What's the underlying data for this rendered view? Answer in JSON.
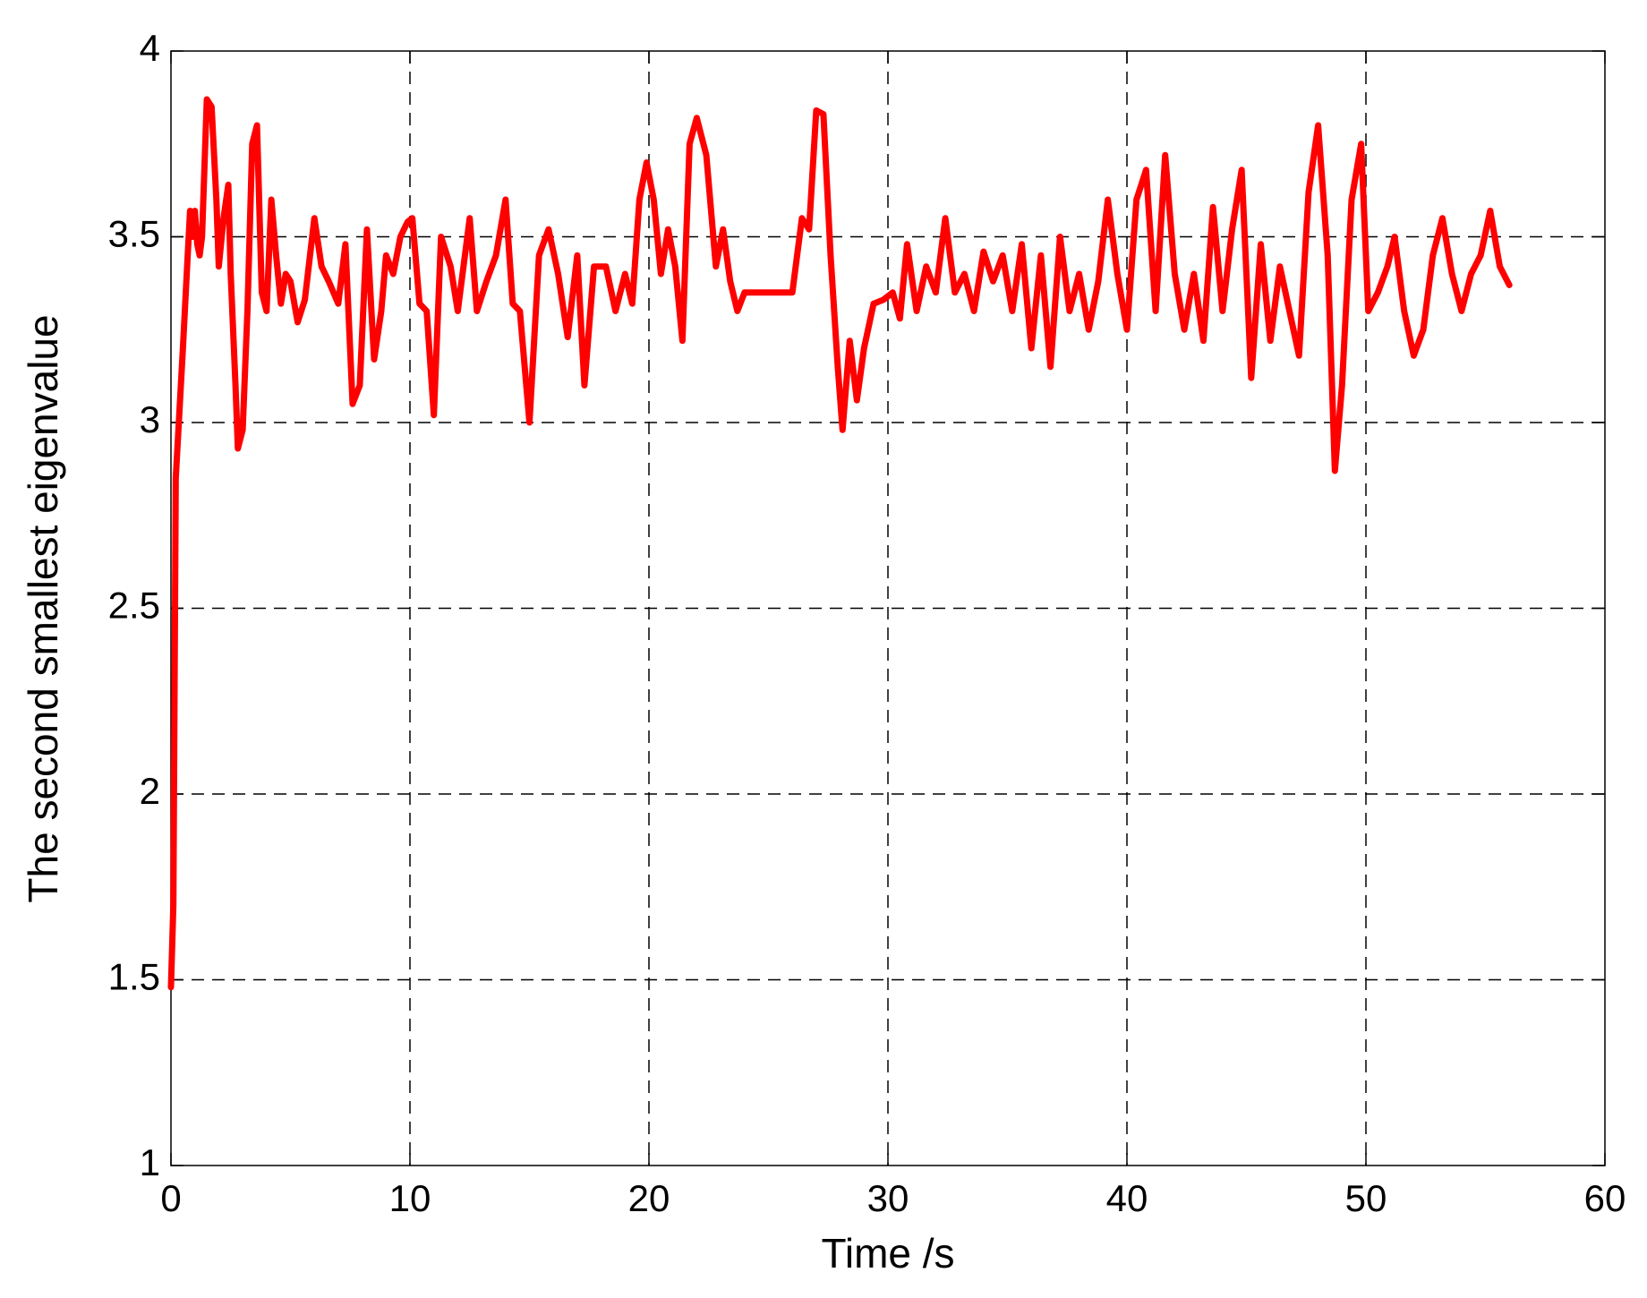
{
  "chart_data": {
    "type": "line",
    "xlabel": "Time /s",
    "ylabel": "The second smallest eigenvalue",
    "xlim": [
      0,
      60
    ],
    "ylim": [
      1,
      4
    ],
    "xticks": [
      0,
      10,
      20,
      30,
      40,
      50,
      60
    ],
    "yticks": [
      1,
      1.5,
      2,
      2.5,
      3,
      3.5,
      4
    ],
    "grid": true,
    "x": [
      0,
      0.1,
      0.2,
      0.5,
      0.7,
      0.8,
      0.9,
      1.0,
      1.1,
      1.2,
      1.3,
      1.5,
      1.7,
      1.9,
      2.0,
      2.2,
      2.4,
      2.5,
      2.7,
      2.8,
      3.0,
      3.2,
      3.4,
      3.6,
      3.8,
      4.0,
      4.2,
      4.4,
      4.6,
      4.8,
      5.0,
      5.3,
      5.6,
      6.0,
      6.3,
      6.6,
      7.0,
      7.3,
      7.6,
      7.9,
      8.2,
      8.5,
      8.8,
      9.0,
      9.3,
      9.6,
      9.9,
      10.1,
      10.4,
      10.7,
      11.0,
      11.3,
      11.7,
      12.0,
      12.5,
      12.8,
      13.2,
      13.6,
      14.0,
      14.3,
      14.6,
      15.0,
      15.4,
      15.8,
      16.2,
      16.6,
      17.0,
      17.3,
      17.7,
      18.2,
      18.6,
      19.0,
      19.3,
      19.6,
      19.9,
      20.2,
      20.5,
      20.8,
      21.1,
      21.4,
      21.7,
      22.0,
      22.4,
      22.8,
      23.1,
      23.4,
      23.7,
      24.0,
      26.0,
      26.4,
      26.7,
      27.0,
      27.3,
      27.6,
      27.9,
      28.1,
      28.4,
      28.7,
      29.0,
      29.4,
      29.8,
      30.2,
      30.5,
      30.8,
      31.2,
      31.6,
      32.0,
      32.4,
      32.8,
      33.2,
      33.6,
      34.0,
      34.4,
      34.8,
      35.2,
      35.6,
      36.0,
      36.4,
      36.8,
      37.2,
      37.6,
      38.0,
      38.4,
      38.8,
      39.2,
      39.6,
      40.0,
      40.4,
      40.8,
      41.2,
      41.6,
      42.0,
      42.4,
      42.8,
      43.2,
      43.6,
      44.0,
      44.4,
      44.8,
      45.2,
      45.6,
      46.0,
      46.4,
      46.8,
      47.2,
      47.6,
      48.0,
      48.4,
      48.7,
      49.0,
      49.4,
      49.8,
      50.1,
      50.5,
      50.9,
      51.2,
      51.6,
      52.0,
      52.4,
      52.8,
      53.2,
      53.6,
      54.0,
      54.4,
      54.8,
      55.2,
      55.6,
      56.0
    ],
    "series": [
      {
        "color": "#ff0000",
        "values": [
          1.48,
          1.7,
          2.85,
          3.2,
          3.45,
          3.57,
          3.5,
          3.57,
          3.48,
          3.45,
          3.5,
          3.87,
          3.85,
          3.6,
          3.42,
          3.55,
          3.64,
          3.4,
          3.1,
          2.93,
          2.98,
          3.3,
          3.75,
          3.8,
          3.35,
          3.3,
          3.6,
          3.45,
          3.32,
          3.4,
          3.38,
          3.27,
          3.33,
          3.55,
          3.42,
          3.38,
          3.32,
          3.48,
          3.05,
          3.1,
          3.52,
          3.17,
          3.3,
          3.45,
          3.4,
          3.5,
          3.54,
          3.55,
          3.32,
          3.3,
          3.02,
          3.5,
          3.42,
          3.3,
          3.55,
          3.3,
          3.38,
          3.45,
          3.6,
          3.32,
          3.3,
          3.0,
          3.45,
          3.52,
          3.4,
          3.23,
          3.45,
          3.1,
          3.42,
          3.42,
          3.3,
          3.4,
          3.32,
          3.6,
          3.7,
          3.6,
          3.4,
          3.52,
          3.42,
          3.22,
          3.75,
          3.82,
          3.72,
          3.42,
          3.52,
          3.38,
          3.3,
          3.35,
          3.35,
          3.55,
          3.52,
          3.84,
          3.83,
          3.45,
          3.15,
          2.98,
          3.22,
          3.06,
          3.2,
          3.32,
          3.33,
          3.35,
          3.28,
          3.48,
          3.3,
          3.42,
          3.35,
          3.55,
          3.35,
          3.4,
          3.3,
          3.46,
          3.38,
          3.45,
          3.3,
          3.48,
          3.2,
          3.45,
          3.15,
          3.5,
          3.3,
          3.4,
          3.25,
          3.38,
          3.6,
          3.4,
          3.25,
          3.6,
          3.68,
          3.3,
          3.72,
          3.4,
          3.25,
          3.4,
          3.22,
          3.58,
          3.3,
          3.52,
          3.68,
          3.12,
          3.48,
          3.22,
          3.42,
          3.3,
          3.18,
          3.62,
          3.8,
          3.45,
          2.87,
          3.1,
          3.6,
          3.75,
          3.3,
          3.35,
          3.42,
          3.5,
          3.3,
          3.18,
          3.25,
          3.45,
          3.55,
          3.4,
          3.3,
          3.4,
          3.45,
          3.57,
          3.42,
          3.37
        ]
      }
    ]
  }
}
